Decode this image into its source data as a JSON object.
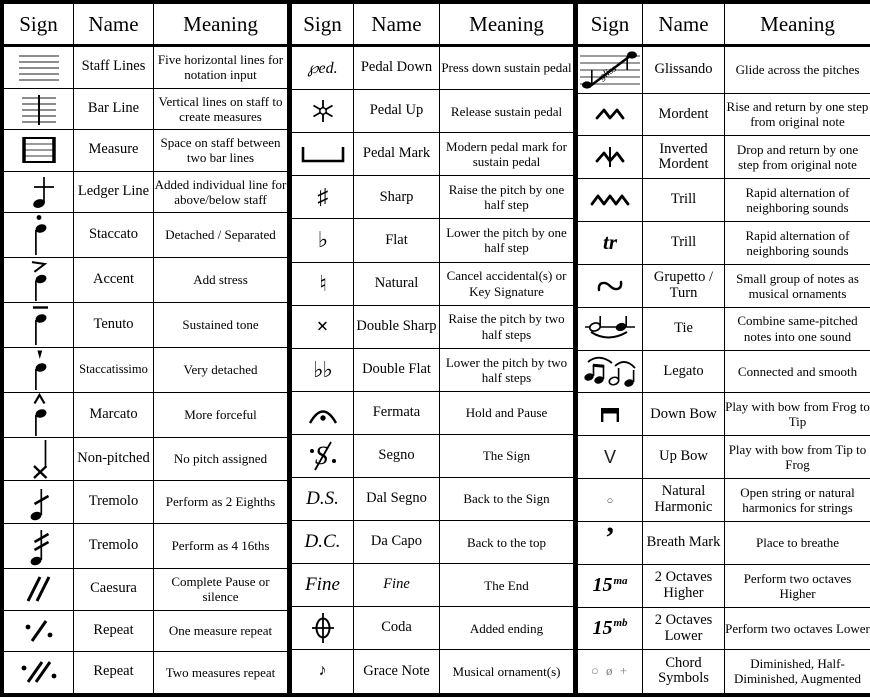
{
  "table": {
    "groups": [
      {
        "headers": {
          "sign": "Sign",
          "name": "Name",
          "meaning": "Meaning"
        },
        "rows": [
          {
            "sign": {
              "icon": "staff-lines-icon"
            },
            "name": "Staff Lines",
            "meaning": "Five horizontal lines for notation input"
          },
          {
            "sign": {
              "icon": "bar-line-icon"
            },
            "name": "Bar Line",
            "meaning": "Vertical lines on staff to create measures"
          },
          {
            "sign": {
              "icon": "measure-icon"
            },
            "name": "Measure",
            "meaning": "Space on staff between two bar lines"
          },
          {
            "sign": {
              "icon": "ledger-line-icon"
            },
            "name": "Ledger Line",
            "meaning": "Added individual line for above/below staff"
          },
          {
            "sign": {
              "icon": "staccato-note-icon"
            },
            "name": "Staccato",
            "meaning": "Detached / Separated"
          },
          {
            "sign": {
              "icon": "accent-note-icon"
            },
            "name": "Accent",
            "meaning": "Add stress"
          },
          {
            "sign": {
              "icon": "tenuto-note-icon"
            },
            "name": "Tenuto",
            "meaning": "Sustained tone"
          },
          {
            "sign": {
              "icon": "staccatissimo-note-icon"
            },
            "name": "Staccatissimo",
            "meaning": "Very detached"
          },
          {
            "sign": {
              "icon": "marcato-note-icon"
            },
            "name": "Marcato",
            "meaning": "More forceful"
          },
          {
            "sign": {
              "icon": "non-pitched-note-icon"
            },
            "name": "Non-pitched",
            "meaning": "No pitch assigned"
          },
          {
            "sign": {
              "icon": "tremolo-eighths-icon"
            },
            "name": "Tremolo",
            "meaning": "Perform as 2 Eighths"
          },
          {
            "sign": {
              "icon": "tremolo-sixteenths-icon"
            },
            "name": "Tremolo",
            "meaning": "Perform as 4 16ths"
          },
          {
            "sign": {
              "icon": "caesura-icon"
            },
            "name": "Caesura",
            "meaning": "Complete Pause or silence"
          },
          {
            "sign": {
              "icon": "repeat-one-measure-icon"
            },
            "name": "Repeat",
            "meaning": "One measure repeat"
          },
          {
            "sign": {
              "icon": "repeat-two-measures-icon"
            },
            "name": "Repeat",
            "meaning": "Two measures repeat"
          }
        ]
      },
      {
        "headers": {
          "sign": "Sign",
          "name": "Name",
          "meaning": "Meaning"
        },
        "rows": [
          {
            "sign": {
              "icon": "pedal-down-icon",
              "glyph": "℘ed.",
              "cls": "g-ped"
            },
            "name": "Pedal Down",
            "meaning": "Press down sustain pedal"
          },
          {
            "sign": {
              "icon": "pedal-up-icon"
            },
            "name": "Pedal Up",
            "meaning": "Release sustain pedal"
          },
          {
            "sign": {
              "icon": "pedal-mark-icon"
            },
            "name": "Pedal Mark",
            "meaning": "Modern pedal mark for sustain pedal"
          },
          {
            "sign": {
              "icon": "sharp-icon",
              "glyph": "♯",
              "cls": "g-acc"
            },
            "name": "Sharp",
            "meaning": "Raise the pitch by one half step"
          },
          {
            "sign": {
              "icon": "flat-icon",
              "glyph": "♭",
              "cls": "g-acc"
            },
            "name": "Flat",
            "meaning": "Lower the pitch by one half step"
          },
          {
            "sign": {
              "icon": "natural-icon",
              "glyph": "♮",
              "cls": "g-acc"
            },
            "name": "Natural",
            "meaning": "Cancel accidental(s) or Key Signature"
          },
          {
            "sign": {
              "icon": "double-sharp-icon",
              "glyph": "×",
              "cls": "g-x"
            },
            "name": "Double Sharp",
            "meaning": "Raise the pitch by two half steps"
          },
          {
            "sign": {
              "icon": "double-flat-icon",
              "glyph": "♭♭",
              "cls": "g-acc"
            },
            "name": "Double Flat",
            "meaning": "Lower the pitch by two half steps"
          },
          {
            "sign": {
              "icon": "fermata-icon"
            },
            "name": "Fermata",
            "meaning": "Hold and Pause"
          },
          {
            "sign": {
              "icon": "segno-icon"
            },
            "name": "Segno",
            "meaning": "The Sign"
          },
          {
            "sign": {
              "icon": "dal-segno-text",
              "glyph": "D.S.",
              "cls": "g-ital"
            },
            "name": "Dal Segno",
            "meaning": "Back to the Sign"
          },
          {
            "sign": {
              "icon": "da-capo-text",
              "glyph": "D.C.",
              "cls": "g-ital"
            },
            "name": "Da Capo",
            "meaning": "Back to the top"
          },
          {
            "sign": {
              "icon": "fine-text",
              "glyph": "Fine",
              "cls": "g-ital"
            },
            "name": "Fine",
            "name_italic": true,
            "meaning": "The End"
          },
          {
            "sign": {
              "icon": "coda-icon"
            },
            "name": "Coda",
            "meaning": "Added ending"
          },
          {
            "sign": {
              "icon": "grace-note-icon",
              "glyph": "♪",
              "cls": "g-grace"
            },
            "name": "Grace Note",
            "meaning": "Musical ornament(s)"
          }
        ]
      },
      {
        "headers": {
          "sign": "Sign",
          "name": "Name",
          "meaning": "Meaning"
        },
        "rows": [
          {
            "sign": {
              "icon": "glissando-icon"
            },
            "name": "Glissando",
            "meaning": "Glide across the pitches"
          },
          {
            "sign": {
              "icon": "mordent-icon"
            },
            "name": "Mordent",
            "meaning": "Rise and return by one step from original note"
          },
          {
            "sign": {
              "icon": "inverted-mordent-icon"
            },
            "name": "Inverted Mordent",
            "meaning": "Drop and return by one step from original note"
          },
          {
            "sign": {
              "icon": "trill-wave-icon"
            },
            "name": "Trill",
            "meaning": "Rapid alternation of neighboring sounds"
          },
          {
            "sign": {
              "icon": "trill-tr-text",
              "glyph": "tr",
              "cls": "g-tr"
            },
            "name": "Trill",
            "meaning": "Rapid alternation of neighboring sounds"
          },
          {
            "sign": {
              "icon": "turn-icon"
            },
            "name": "Grupetto / Turn",
            "meaning": "Small group of notes as musical ornaments"
          },
          {
            "sign": {
              "icon": "tie-icon"
            },
            "name": "Tie",
            "meaning": "Combine same-pitched notes into one sound"
          },
          {
            "sign": {
              "icon": "legato-icon"
            },
            "name": "Legato",
            "meaning": "Connected and smooth"
          },
          {
            "sign": {
              "icon": "down-bow-icon"
            },
            "name": "Down Bow",
            "meaning": "Play with bow from Frog to Tip"
          },
          {
            "sign": {
              "icon": "up-bow-icon",
              "glyph": "V",
              "cls": "g-v"
            },
            "name": "Up Bow",
            "meaning": "Play with bow from Tip to Frog"
          },
          {
            "sign": {
              "icon": "natural-harmonic-icon",
              "glyph": "○",
              "cls": "g-harm"
            },
            "name": "Natural Harmonic",
            "meaning": "Open string or natural harmonics for strings"
          },
          {
            "sign": {
              "icon": "breath-mark-icon",
              "glyph": "’",
              "cls": "g-comma"
            },
            "name": "Breath Mark",
            "meaning": "Place to breathe"
          },
          {
            "sign": {
              "icon": "two-octaves-higher-text",
              "glyph": "15",
              "sup": "ma",
              "cls": "g-15"
            },
            "name": "2 Octaves Higher",
            "meaning": "Perform two octaves Higher"
          },
          {
            "sign": {
              "icon": "two-octaves-lower-text",
              "glyph": "15",
              "sup": "mb",
              "cls": "g-15"
            },
            "name": "2 Octaves Lower",
            "meaning": "Perform two octaves Lower"
          },
          {
            "sign": {
              "icon": "chord-symbols-icon",
              "glyph": "○ ø +",
              "cls": "g-chord"
            },
            "name": "Chord Symbols",
            "meaning": "Diminished, Half-Diminished, Augmented"
          }
        ]
      }
    ]
  },
  "colors": {
    "grid_line": "#000000",
    "staff_line_gray": "#8d8d8d",
    "muted_symbol": "#7d7d7d",
    "background": "#ffffff"
  }
}
